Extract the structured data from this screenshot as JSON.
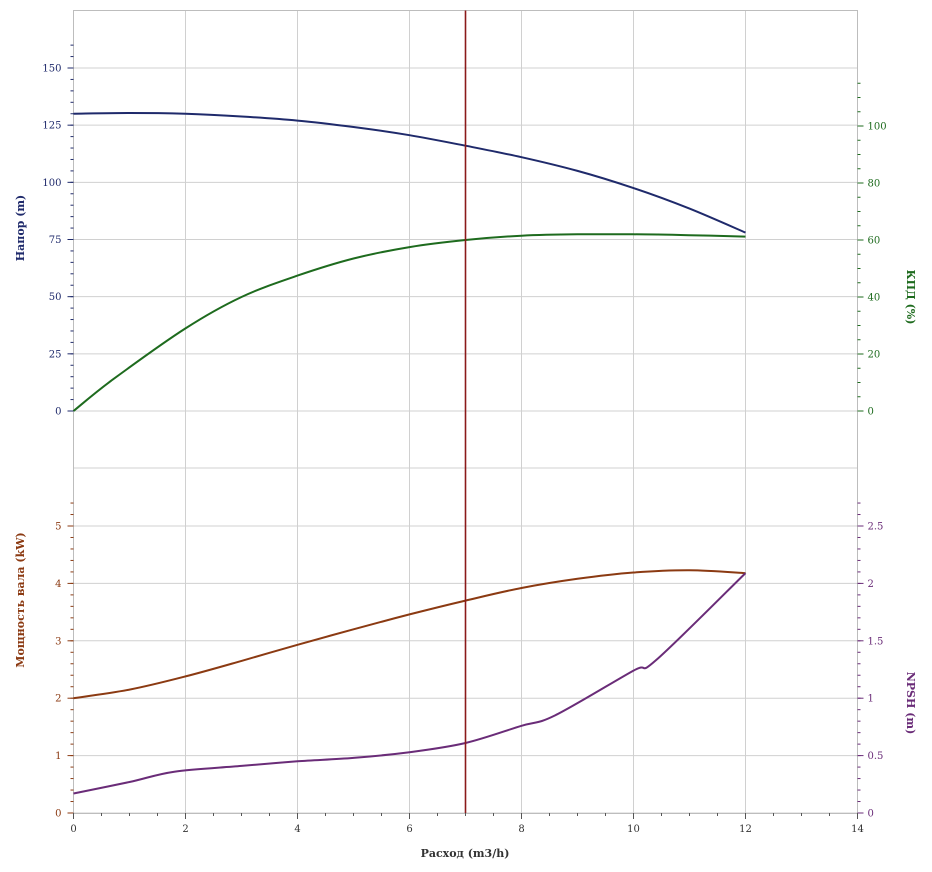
{
  "colors": {
    "head": "#1f2a6b",
    "efficiency": "#1e6b1e",
    "power": "#8b3a12",
    "npsh": "#6a2c78",
    "marker": "#8b1a1a",
    "grid": "#d0d0d0",
    "x_axis": "#555555"
  },
  "chart_data": [
    {
      "type": "line",
      "panel": "top",
      "xlabel": "Расход (m3/h)",
      "xlim": [
        0,
        14
      ],
      "x_ticks": [
        "0",
        "2",
        "4",
        "6",
        "8",
        "10",
        "12",
        "14"
      ],
      "ylabel_left": "Напор (m)",
      "ylim_left": [
        0,
        150
      ],
      "yticks_left": [
        "0",
        "25",
        "50",
        "75",
        "100",
        "125",
        "150"
      ],
      "ylabel_right": "КПД (%)",
      "ylim_right": [
        0,
        100
      ],
      "yticks_right": [
        "0",
        "20",
        "40",
        "60",
        "80",
        "100"
      ],
      "grid": true,
      "series": [
        {
          "name": "Напор (m)",
          "axis": "left",
          "x": [
            0,
            1,
            2,
            3,
            4,
            5,
            6,
            7,
            8,
            9,
            10,
            11,
            12
          ],
          "y": [
            130,
            130.3,
            130,
            128.8,
            127,
            124.2,
            120.6,
            116,
            111,
            105,
            97.5,
            88.5,
            78
          ]
        },
        {
          "name": "КПД (%)",
          "axis": "right",
          "x": [
            0,
            0.7,
            2,
            3,
            4,
            5,
            6,
            7,
            8,
            9,
            10,
            11,
            12
          ],
          "y": [
            0,
            11,
            29,
            40,
            47.5,
            53.5,
            57.5,
            60,
            61.5,
            62,
            62,
            61.7,
            61.2
          ]
        }
      ]
    },
    {
      "type": "line",
      "panel": "bottom",
      "xlabel": "Расход (m3/h)",
      "xlim": [
        0,
        14
      ],
      "x_ticks": [
        "0",
        "2",
        "4",
        "6",
        "8",
        "10",
        "12",
        "14"
      ],
      "ylabel_left": "Мощность вала (kW)",
      "ylim_left": [
        0,
        5
      ],
      "yticks_left": [
        "0",
        "1",
        "2",
        "3",
        "4",
        "5"
      ],
      "ylabel_right": "NPSH (m)",
      "ylim_right": [
        0,
        2.5
      ],
      "yticks_right": [
        "0",
        "0.5",
        "1",
        "1.5",
        "2",
        "2.5"
      ],
      "grid": true,
      "series": [
        {
          "name": "Мощность вала (kW)",
          "axis": "left",
          "x": [
            0,
            1,
            2,
            3,
            4,
            5,
            6,
            7,
            8,
            9,
            10,
            11,
            12
          ],
          "y": [
            2.0,
            2.15,
            2.38,
            2.65,
            2.93,
            3.2,
            3.46,
            3.7,
            3.92,
            4.08,
            4.19,
            4.23,
            4.18
          ]
        },
        {
          "name": "NPSH (m)",
          "axis": "right",
          "x": [
            0,
            1,
            1.8,
            3,
            4,
            5,
            6,
            7,
            8,
            8.6,
            10,
            10.4,
            12
          ],
          "y": [
            0.17,
            0.27,
            0.36,
            0.41,
            0.45,
            0.48,
            0.53,
            0.61,
            0.76,
            0.85,
            1.24,
            1.33,
            2.09
          ]
        }
      ]
    }
  ],
  "operating_point": {
    "x": 7
  }
}
